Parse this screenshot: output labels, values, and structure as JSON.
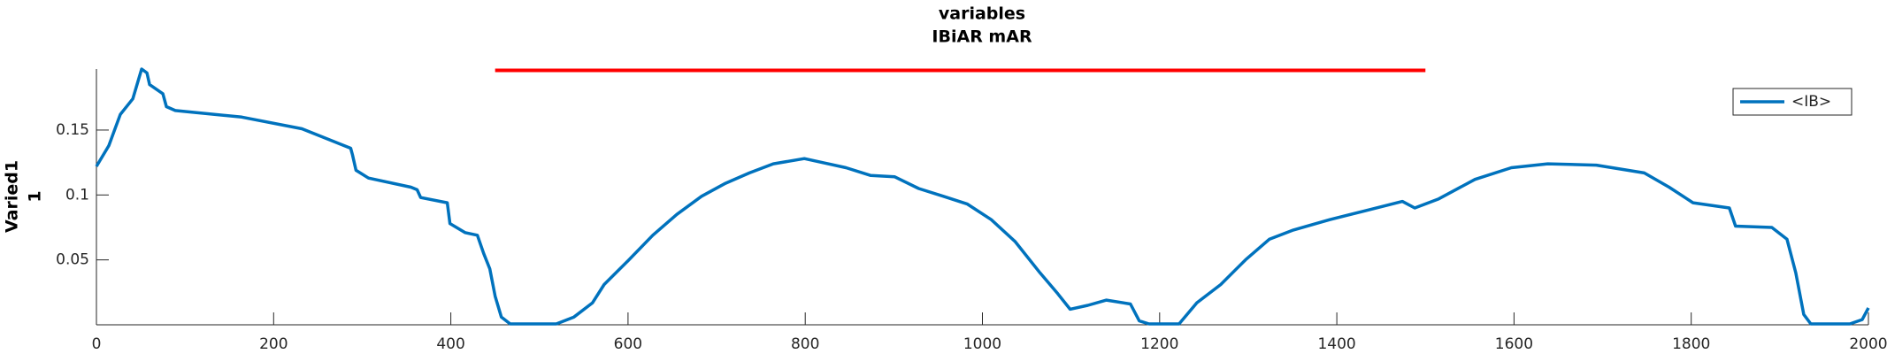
{
  "chart_data": {
    "type": "line",
    "title": [
      "variables",
      "IBiAR mAR"
    ],
    "ylabel": [
      "Varied1",
      "1"
    ],
    "xlim": [
      0,
      2000
    ],
    "xticks": [
      0,
      200,
      400,
      600,
      800,
      1000,
      1200,
      1400,
      1600,
      1800,
      2000
    ],
    "ylim": [
      0,
      0.197
    ],
    "yticks": [
      0.05,
      0.1,
      0.15
    ],
    "grid": false,
    "legend": "upper right",
    "series": [
      {
        "name": "<IB>",
        "color": "#0072bd",
        "x": [
          0,
          14,
          27,
          41,
          51,
          57,
          60,
          75,
          79,
          89,
          164,
          232,
          287,
          289,
          293,
          307,
          355,
          362,
          366,
          396,
          399,
          416,
          430,
          437,
          444,
          450,
          457,
          467,
          519,
          539,
          560,
          573,
          601,
          628,
          655,
          683,
          710,
          737,
          764,
          799,
          819,
          846,
          874,
          901,
          928,
          956,
          983,
          1010,
          1037,
          1065,
          1085,
          1099,
          1119,
          1140,
          1167,
          1177,
          1188,
          1222,
          1242,
          1269,
          1297,
          1324,
          1351,
          1392,
          1433,
          1474,
          1488,
          1515,
          1556,
          1597,
          1638,
          1693,
          1747,
          1775,
          1802,
          1843,
          1850,
          1891,
          1908,
          1918,
          1927,
          1935,
          1979,
          1993,
          2000
        ],
        "values": [
          0.122,
          0.138,
          0.162,
          0.174,
          0.197,
          0.194,
          0.185,
          0.178,
          0.168,
          0.165,
          0.16,
          0.151,
          0.136,
          0.131,
          0.119,
          0.113,
          0.106,
          0.104,
          0.098,
          0.094,
          0.078,
          0.071,
          0.069,
          0.055,
          0.043,
          0.022,
          0.006,
          0.0007,
          0.0007,
          0.006,
          0.017,
          0.031,
          0.05,
          0.069,
          0.085,
          0.099,
          0.109,
          0.117,
          0.124,
          0.128,
          0.125,
          0.121,
          0.115,
          0.114,
          0.105,
          0.099,
          0.093,
          0.081,
          0.064,
          0.04,
          0.024,
          0.012,
          0.015,
          0.019,
          0.016,
          0.003,
          0.0007,
          0.0007,
          0.017,
          0.031,
          0.05,
          0.066,
          0.073,
          0.081,
          0.088,
          0.095,
          0.09,
          0.097,
          0.112,
          0.121,
          0.124,
          0.123,
          0.117,
          0.106,
          0.094,
          0.09,
          0.076,
          0.075,
          0.066,
          0.04,
          0.008,
          0.0007,
          0.0007,
          0.004,
          0.013
        ]
      }
    ],
    "annotation_line": {
      "color": "#ff0000",
      "x": [
        450,
        1500
      ],
      "values": [
        0.196,
        0.196
      ]
    }
  }
}
